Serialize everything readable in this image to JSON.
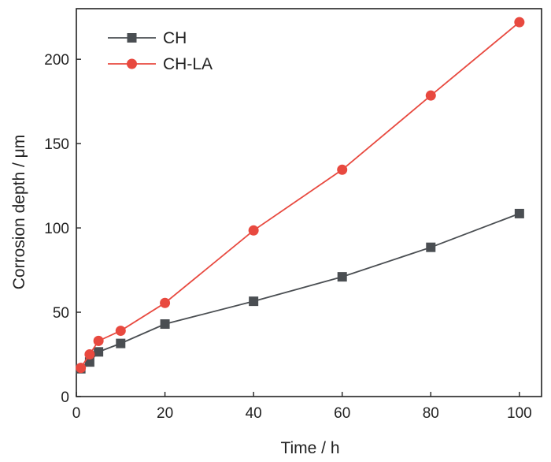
{
  "chart_data": {
    "type": "line",
    "xlabel": "Time / h",
    "ylabel": "Corrosion depth / μm",
    "xlim": [
      0,
      105
    ],
    "ylim": [
      0,
      230
    ],
    "xticks": [
      0,
      20,
      40,
      60,
      80,
      100
    ],
    "yticks": [
      0,
      50,
      100,
      150,
      200
    ],
    "grid": false,
    "legend_position": "top-left",
    "series": [
      {
        "name": "CH",
        "marker": "square",
        "color": "#4a4e52",
        "x": [
          1,
          3,
          5,
          10,
          20,
          40,
          60,
          80,
          100
        ],
        "y": [
          16.5,
          20.5,
          26.5,
          31.5,
          43,
          56.5,
          71,
          88.5,
          108.5
        ]
      },
      {
        "name": "CH-LA",
        "marker": "circle",
        "color": "#e8493f",
        "x": [
          1,
          3,
          5,
          10,
          20,
          40,
          60,
          80,
          100
        ],
        "y": [
          17,
          25,
          33,
          39,
          55.5,
          98.5,
          134.5,
          178.5,
          222
        ]
      }
    ]
  }
}
